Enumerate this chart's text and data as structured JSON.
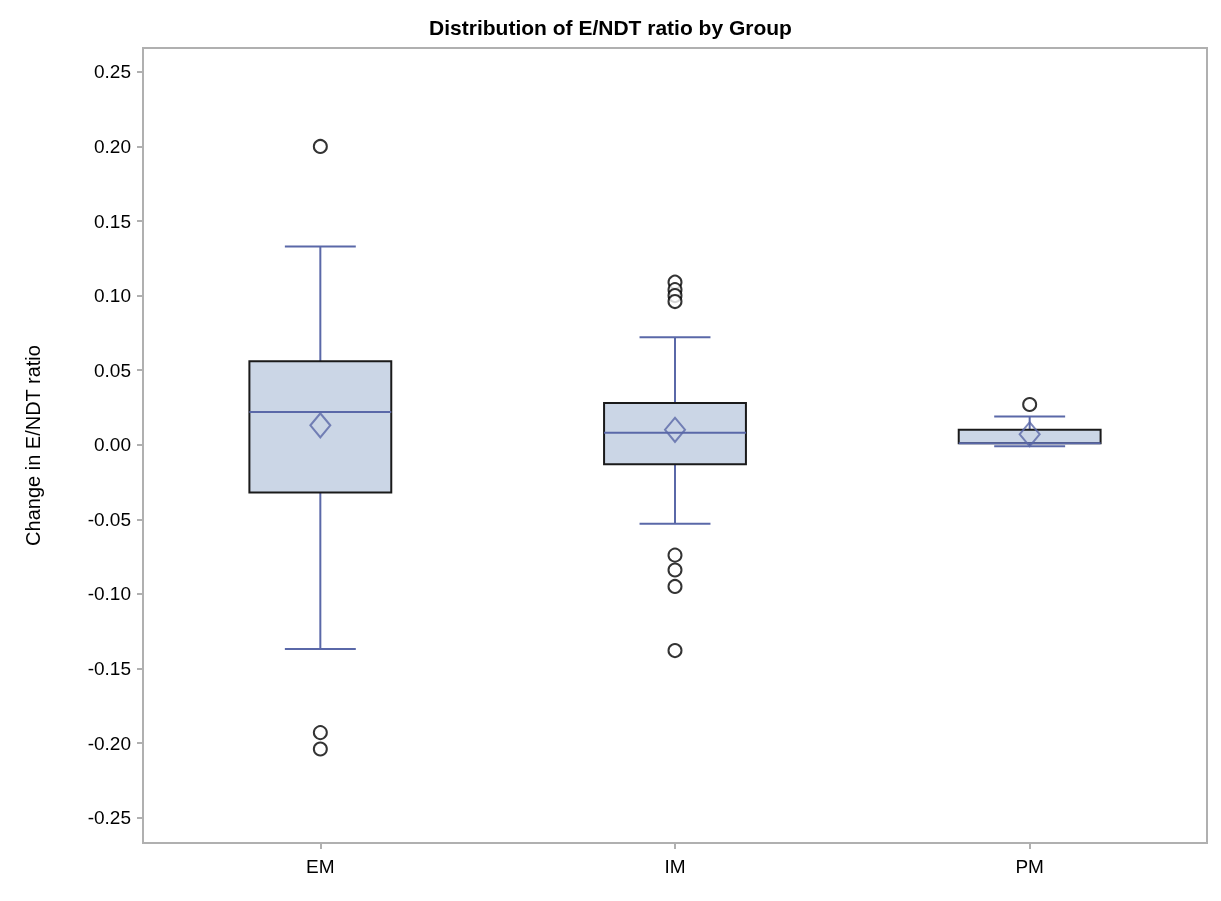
{
  "chart_data": {
    "type": "box",
    "title": "Distribution of E/NDT ratio by Group",
    "ylabel": "Change in E/NDT ratio",
    "categories": [
      "EM",
      "IM",
      "PM"
    ],
    "series": [
      {
        "color": "#cbd6e6",
        "boxes": [
          {
            "low": -0.137,
            "q1": -0.032,
            "median": 0.022,
            "q3": 0.056,
            "high": 0.133,
            "mean": 0.013,
            "outliers": [
              0.2,
              -0.193,
              -0.204
            ]
          },
          {
            "low": -0.053,
            "q1": -0.013,
            "median": 0.008,
            "q3": 0.028,
            "high": 0.072,
            "mean": 0.01,
            "outliers": [
              0.109,
              0.104,
              0.1,
              0.096,
              -0.074,
              -0.084,
              -0.095,
              -0.138
            ]
          },
          {
            "low": -0.001,
            "q1": 0.001,
            "median": 0.001,
            "q3": 0.01,
            "high": 0.019,
            "mean": 0.007,
            "outliers": [
              0.027
            ]
          }
        ]
      }
    ],
    "ylim": [
      -0.267,
      0.266
    ],
    "yticks": [
      {
        "value": -0.25,
        "label": "-0.25"
      },
      {
        "value": -0.2,
        "label": "-0.20"
      },
      {
        "value": -0.15,
        "label": "-0.15"
      },
      {
        "value": -0.1,
        "label": "-0.10"
      },
      {
        "value": -0.05,
        "label": "-0.05"
      },
      {
        "value": 0,
        "label": "0.00"
      },
      {
        "value": 0.05,
        "label": "0.05"
      },
      {
        "value": 0.1,
        "label": "0.10"
      },
      {
        "value": 0.15,
        "label": "0.15"
      },
      {
        "value": 0.2,
        "label": "0.20"
      },
      {
        "value": 0.25,
        "label": "0.25"
      }
    ],
    "grid": false
  }
}
